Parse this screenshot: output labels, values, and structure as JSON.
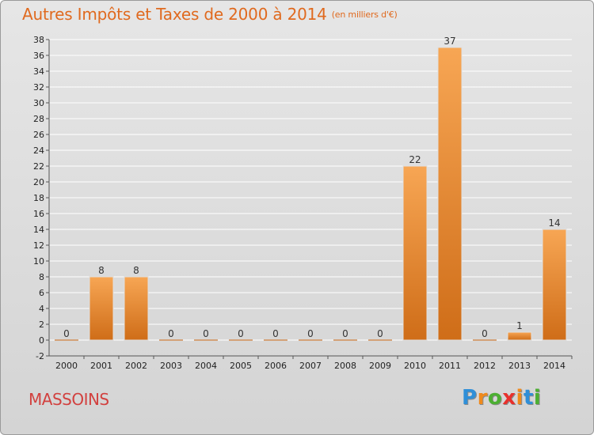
{
  "header": {
    "title": "Autres Impôts et Taxes de 2000 à 2014",
    "unit": "(en milliers d'€)"
  },
  "footer": {
    "commune": "MASSOINS",
    "logo": [
      "P",
      "r",
      "o",
      "x",
      "i",
      "t",
      "i"
    ],
    "logo_colors": [
      "#2f8fd8",
      "#f08a1c",
      "#4caf32",
      "#e8302c",
      "#f08a1c",
      "#2f8fd8",
      "#4caf32"
    ]
  },
  "colors": {
    "title": "#e06a1f",
    "commune": "#d2413f",
    "bar_top": "#f7a654",
    "bar_bottom": "#cf6d18"
  },
  "chart_data": {
    "type": "bar",
    "title": "Autres Impôts et Taxes de 2000 à 2014",
    "subtitle": "(en milliers d'€)",
    "categories": [
      "2000",
      "2001",
      "2002",
      "2003",
      "2004",
      "2005",
      "2006",
      "2007",
      "2008",
      "2009",
      "2010",
      "2011",
      "2012",
      "2013",
      "2014"
    ],
    "values": [
      0,
      8,
      8,
      0,
      0,
      0,
      0,
      0,
      0,
      0,
      22,
      37,
      0,
      1,
      14
    ],
    "ylim": [
      -2,
      38
    ],
    "yticks": [
      -2,
      0,
      2,
      4,
      6,
      8,
      10,
      12,
      14,
      16,
      18,
      20,
      22,
      24,
      26,
      28,
      30,
      32,
      34,
      36,
      38
    ],
    "grid": true,
    "legend": "none"
  }
}
